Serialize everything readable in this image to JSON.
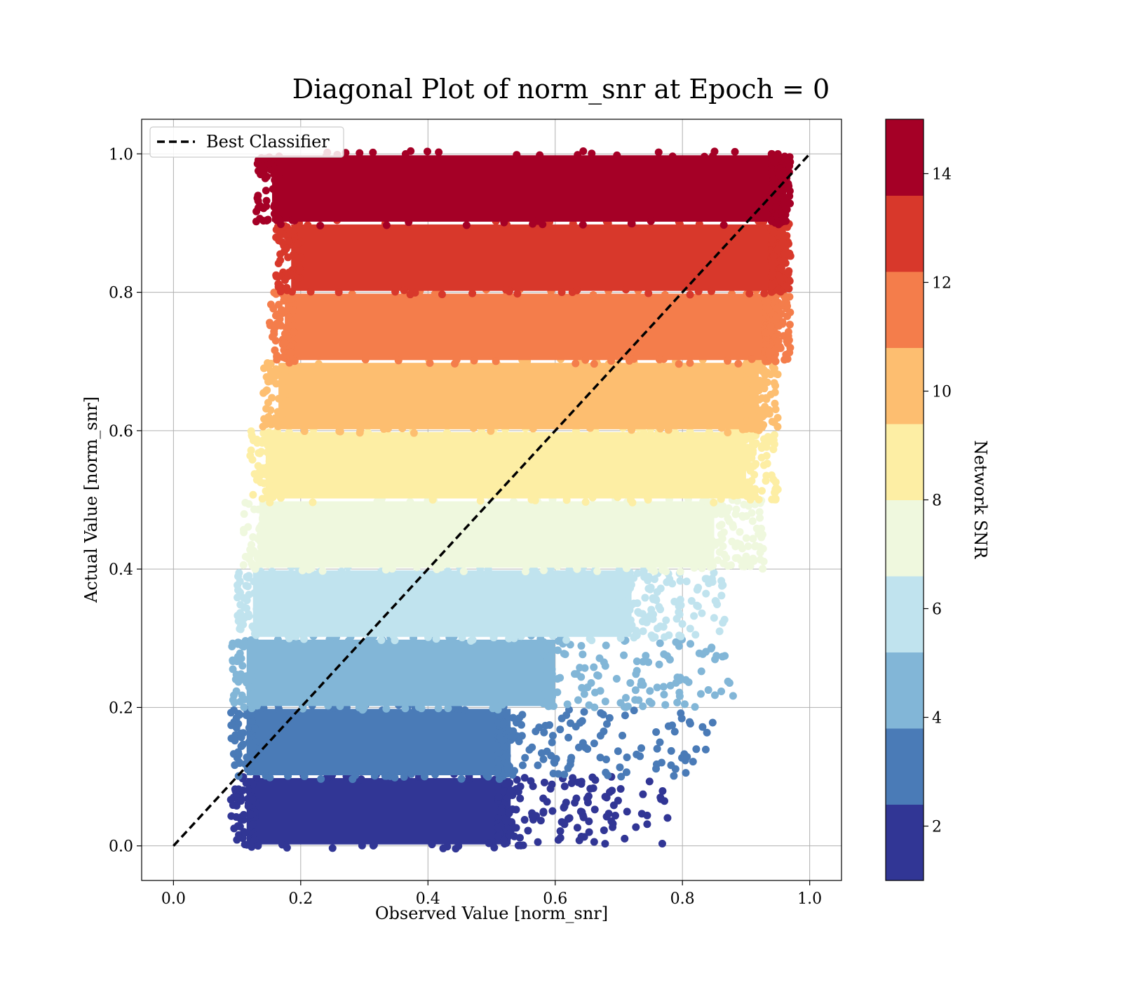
{
  "chart_data": {
    "type": "scatter",
    "title": "Diagonal Plot of norm_snr at Epoch = 0",
    "xlabel": "Observed Value [norm_snr]",
    "ylabel": "Actual Value [norm_snr]",
    "xlim": [
      -0.05,
      1.05
    ],
    "ylim": [
      -0.05,
      1.05
    ],
    "xticks": [
      "0.0",
      "0.2",
      "0.4",
      "0.6",
      "0.8",
      "1.0"
    ],
    "yticks": [
      "0.0",
      "0.2",
      "0.4",
      "0.6",
      "0.8",
      "1.0"
    ],
    "grid": true,
    "legend": {
      "position": "top-left",
      "entries": [
        "Best Classifier"
      ]
    },
    "reference_line": {
      "label": "Best Classifier",
      "style": "dashed",
      "color": "#000000",
      "x": [
        0.0,
        1.0
      ],
      "y": [
        0.0,
        1.0
      ]
    },
    "colorbar": {
      "label": "Network SNR",
      "range": [
        1,
        15
      ],
      "ticks": [
        "2",
        "4",
        "6",
        "8",
        "10",
        "12",
        "14"
      ],
      "colors": [
        "#313695",
        "#4a7bb7",
        "#82b6d7",
        "#c0e3ee",
        "#eff8de",
        "#fdeea4",
        "#fdbe70",
        "#f47d4b",
        "#d8382b",
        "#a50026"
      ]
    },
    "bands": [
      {
        "y_range": [
          0.0,
          0.1
        ],
        "color": "#313695",
        "x_min": 0.1,
        "x_dense_max": 0.53,
        "x_sparse_max": 0.78
      },
      {
        "y_range": [
          0.1,
          0.2
        ],
        "color": "#4a7bb7",
        "x_min": 0.1,
        "x_dense_max": 0.53,
        "x_sparse_max": 0.85
      },
      {
        "y_range": [
          0.2,
          0.3
        ],
        "color": "#82b6d7",
        "x_min": 0.1,
        "x_dense_max": 0.6,
        "x_sparse_max": 0.88
      },
      {
        "y_range": [
          0.3,
          0.4
        ],
        "color": "#c0e3ee",
        "x_min": 0.11,
        "x_dense_max": 0.72,
        "x_sparse_max": 0.87
      },
      {
        "y_range": [
          0.4,
          0.5
        ],
        "color": "#eff8de",
        "x_min": 0.12,
        "x_dense_max": 0.85,
        "x_sparse_max": 0.93
      },
      {
        "y_range": [
          0.5,
          0.6
        ],
        "color": "#fdeea4",
        "x_min": 0.13,
        "x_dense_max": 0.9,
        "x_sparse_max": 0.95
      },
      {
        "y_range": [
          0.6,
          0.7
        ],
        "color": "#fdbe70",
        "x_min": 0.15,
        "x_dense_max": 0.92,
        "x_sparse_max": 0.95
      },
      {
        "y_range": [
          0.7,
          0.8
        ],
        "color": "#f47d4b",
        "x_min": 0.16,
        "x_dense_max": 0.95,
        "x_sparse_max": 0.97
      },
      {
        "y_range": [
          0.8,
          0.9
        ],
        "color": "#d8382b",
        "x_min": 0.17,
        "x_dense_max": 0.96,
        "x_sparse_max": 0.97
      },
      {
        "y_range": [
          0.9,
          1.0
        ],
        "color": "#a50026",
        "x_min": 0.14,
        "x_dense_max": 0.96,
        "x_sparse_max": 0.97
      }
    ]
  }
}
